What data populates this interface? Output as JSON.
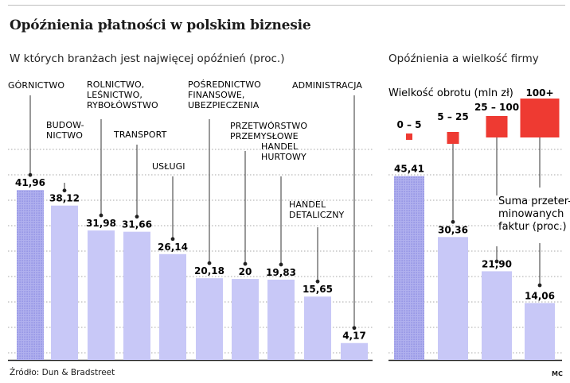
{
  "title": "Opóźnienia płatności w polskim biznesie",
  "source": "Źródło: Dun & Bradstreet",
  "credit": "MC",
  "colors": {
    "bar": "#c8c8f7",
    "bar_highlight": "#b0b0ee",
    "highlight_dot": "#7e7edd",
    "square": "#ee3a32",
    "grid": "#8a8a8a",
    "line": "#333333"
  },
  "chart_data": [
    {
      "type": "bar",
      "subtitle": "W których branżach jest najwięcej opóźnień (proc.)",
      "categories": [
        "GÓRNICTWO",
        "BUDOWNICTWO",
        "ROLNICTWO, LEŚNICTWO, RYBOŁÓWSTWO",
        "TRANSPORT",
        "USŁUGI",
        "POŚREDNICTWO FINANSOWE, UBEZPIECZENIA",
        "PRZETWÓRSTWO PRZEMYSŁOWE",
        "HANDEL HURTOWY",
        "HANDEL DETALICZNY",
        "ADMINISTRACJA"
      ],
      "category_label_lines": [
        [
          "GÓRNICTWO"
        ],
        [
          "BUDOW-",
          "NICTWO"
        ],
        [
          "ROLNICTWO,",
          "LEŚNICTWO,",
          "RYBOŁÓWSTWO"
        ],
        [
          "TRANSPORT"
        ],
        [
          "USŁUGI"
        ],
        [
          "POŚREDNICTWO",
          "FINANSOWE,",
          "UBEZPIECZENIA"
        ],
        [
          "PRZETWÓRSTWO",
          "PRZEMYSŁOWE"
        ],
        [
          "HANDEL",
          "HURTOWY"
        ],
        [
          "HANDEL",
          "DETALICZNY"
        ],
        [
          "ADMINISTRACJA"
        ]
      ],
      "values": [
        41.96,
        38.12,
        31.98,
        31.66,
        26.14,
        20.18,
        20,
        19.83,
        15.65,
        4.17
      ],
      "value_labels": [
        "41,96",
        "38,12",
        "31,98",
        "31,66",
        "26,14",
        "20,18",
        "20",
        "19,83",
        "15,65",
        "4,17"
      ],
      "highlight_index": 0,
      "ylim": [
        0,
        52
      ],
      "grid": true
    },
    {
      "type": "bar",
      "subtitle": "Opóźnienia a wielkość firmy",
      "group_title": "Wielkość obrotu (mln zł)",
      "categories": [
        "0 – 5",
        "5 – 25",
        "25 – 100",
        "100+"
      ],
      "values": [
        45.41,
        30.36,
        21.9,
        14.06
      ],
      "value_labels": [
        "45,41",
        "30,36",
        "21,90",
        "14,06"
      ],
      "highlight_index": 0,
      "annotation_lines": [
        "Suma przeter-",
        "minowanych",
        "faktur (proc.)"
      ],
      "ylim": [
        0,
        52
      ],
      "grid": true
    }
  ]
}
